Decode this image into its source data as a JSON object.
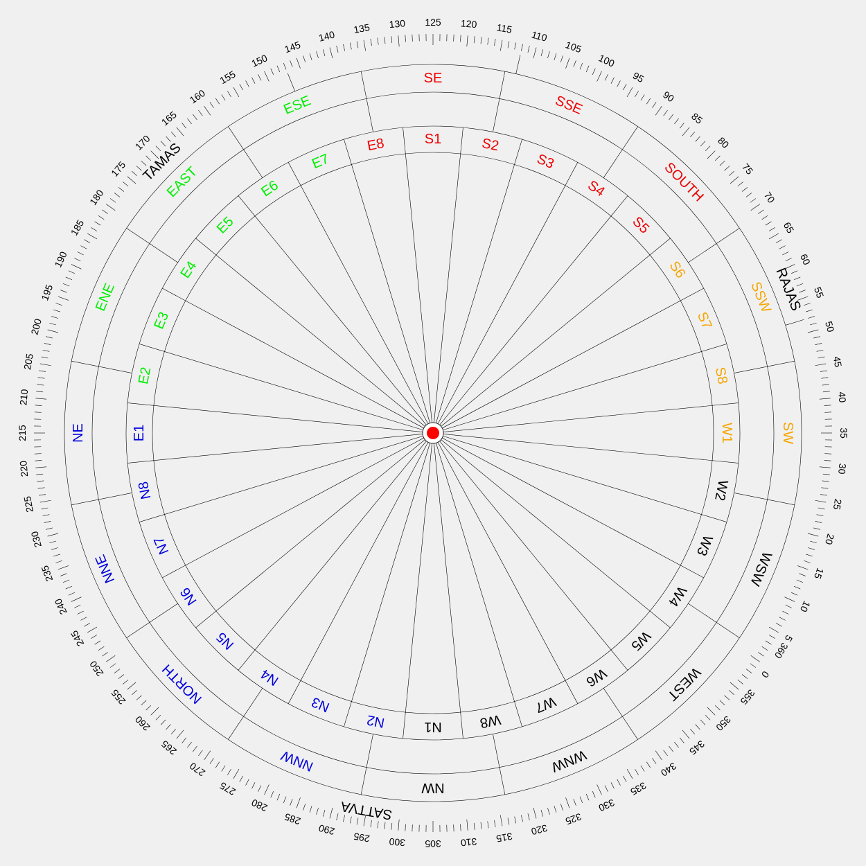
{
  "colors": {
    "background": "#f0f0f0",
    "east_group": "#00ee00",
    "south_group": "#ee0000",
    "southwest_group": "#f5a500",
    "west_group": "#000000",
    "north_group": "#0000dd",
    "guna": "#000000",
    "center_dot": "#ff0000"
  },
  "degree_scale": {
    "start": 0,
    "end": 360,
    "label_step": 5,
    "zero_at_angle": 125
  },
  "gunas": [
    {
      "label": "TAMAS",
      "start": 90,
      "end": 150,
      "color": "#000000"
    },
    {
      "label": "RAJAS",
      "start": 150,
      "end": 270,
      "color": "#000000"
    },
    {
      "label": "SATTVA",
      "start": 270,
      "end": 450,
      "color": "#000000"
    }
  ],
  "directions": [
    {
      "label": "NE",
      "color": "#0000dd"
    },
    {
      "label": "ENE",
      "color": "#00ee00"
    },
    {
      "label": "EAST",
      "color": "#00ee00"
    },
    {
      "label": "ESE",
      "color": "#00ee00"
    },
    {
      "label": "SE",
      "color": "#ee0000"
    },
    {
      "label": "SSE",
      "color": "#ee0000"
    },
    {
      "label": "SOUTH",
      "color": "#ee0000"
    },
    {
      "label": "SSW",
      "color": "#f5a500"
    },
    {
      "label": "SW",
      "color": "#f5a500"
    },
    {
      "label": "WSW",
      "color": "#000000"
    },
    {
      "label": "WEST",
      "color": "#000000"
    },
    {
      "label": "WNW",
      "color": "#000000"
    },
    {
      "label": "NW",
      "color": "#000000"
    },
    {
      "label": "NNW",
      "color": "#0000dd"
    },
    {
      "label": "NORTH",
      "color": "#0000dd"
    },
    {
      "label": "NNE",
      "color": "#0000dd"
    }
  ],
  "padas": [
    {
      "label": "E1",
      "color": "#0000dd"
    },
    {
      "label": "E2",
      "color": "#00ee00"
    },
    {
      "label": "E3",
      "color": "#00ee00"
    },
    {
      "label": "E4",
      "color": "#00ee00"
    },
    {
      "label": "E5",
      "color": "#00ee00"
    },
    {
      "label": "E6",
      "color": "#00ee00"
    },
    {
      "label": "E7",
      "color": "#00ee00"
    },
    {
      "label": "E8",
      "color": "#ee0000"
    },
    {
      "label": "S1",
      "color": "#ee0000"
    },
    {
      "label": "S2",
      "color": "#ee0000"
    },
    {
      "label": "S3",
      "color": "#ee0000"
    },
    {
      "label": "S4",
      "color": "#ee0000"
    },
    {
      "label": "S5",
      "color": "#ee0000"
    },
    {
      "label": "S6",
      "color": "#f5a500"
    },
    {
      "label": "S7",
      "color": "#f5a500"
    },
    {
      "label": "S8",
      "color": "#f5a500"
    },
    {
      "label": "W1",
      "color": "#f5a500"
    },
    {
      "label": "W2",
      "color": "#000000"
    },
    {
      "label": "W3",
      "color": "#000000"
    },
    {
      "label": "W4",
      "color": "#000000"
    },
    {
      "label": "W5",
      "color": "#000000"
    },
    {
      "label": "W6",
      "color": "#000000"
    },
    {
      "label": "W7",
      "color": "#000000"
    },
    {
      "label": "W8",
      "color": "#000000"
    },
    {
      "label": "N1",
      "color": "#000000"
    },
    {
      "label": "N2",
      "color": "#0000dd"
    },
    {
      "label": "N3",
      "color": "#0000dd"
    },
    {
      "label": "N4",
      "color": "#0000dd"
    },
    {
      "label": "N5",
      "color": "#0000dd"
    },
    {
      "label": "N6",
      "color": "#0000dd"
    },
    {
      "label": "N7",
      "color": "#0000dd"
    },
    {
      "label": "N8",
      "color": "#0000dd"
    }
  ]
}
